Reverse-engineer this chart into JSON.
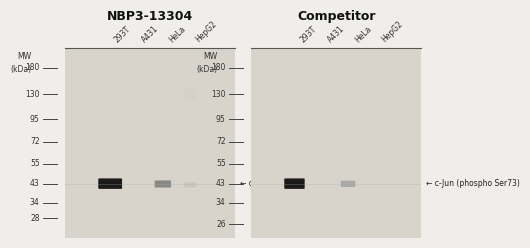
{
  "title_left": "NBP3-13304",
  "title_right": "Competitor",
  "bg_color": "#d8d4cc",
  "fig_bg": "#f0eeea",
  "lane_labels": [
    "293T",
    "A431",
    "HeLa",
    "HepG2"
  ],
  "mw_ticks_left": [
    180,
    130,
    95,
    72,
    55,
    43,
    34,
    28
  ],
  "mw_ticks_right": [
    180,
    130,
    95,
    72,
    55,
    43,
    34,
    26
  ],
  "annotation_text": "← c-Jun (phospho Ser73)",
  "title_fontsize": 9,
  "tick_fontsize": 5.5,
  "lane_fontsize": 5.5,
  "annotation_fontsize": 5.5
}
